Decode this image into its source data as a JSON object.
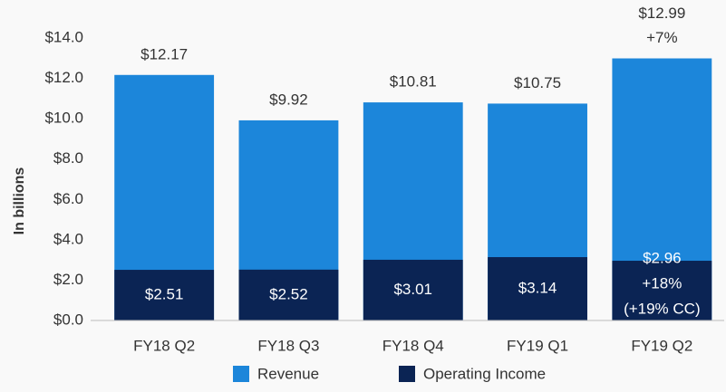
{
  "chart_data": {
    "type": "bar",
    "overlap": true,
    "y_label": "In billions",
    "categories": [
      "FY18 Q2",
      "FY18 Q3",
      "FY18 Q4",
      "FY19 Q1",
      "FY19 Q2"
    ],
    "series": [
      {
        "name": "Revenue",
        "color": "#1c86da",
        "values": [
          12.17,
          9.92,
          10.81,
          10.75,
          12.99
        ],
        "value_labels": [
          "$12.17",
          "$9.92",
          "$10.81",
          "$10.75",
          "$12.99"
        ],
        "annotations": [
          null,
          null,
          null,
          null,
          [
            "+7%"
          ]
        ]
      },
      {
        "name": "Operating Income",
        "color": "#0b2454",
        "values": [
          2.51,
          2.52,
          3.01,
          3.14,
          2.96
        ],
        "value_labels": [
          "$2.51",
          "$2.52",
          "$3.01",
          "$3.14",
          "$2.96"
        ],
        "annotations": [
          null,
          null,
          null,
          null,
          [
            "+18%",
            "(+19% CC)"
          ]
        ]
      }
    ],
    "ylim": [
      0,
      14
    ],
    "yticks": [
      {
        "value": 0,
        "label": "$0.0"
      },
      {
        "value": 2,
        "label": "$2.0"
      },
      {
        "value": 4,
        "label": "$4.0"
      },
      {
        "value": 6,
        "label": "$6.0"
      },
      {
        "value": 8,
        "label": "$8.0"
      },
      {
        "value": 10,
        "label": "$10.0"
      },
      {
        "value": 12,
        "label": "$12.0"
      },
      {
        "value": 14,
        "label": "$14.0"
      }
    ],
    "legend": "bottom"
  }
}
